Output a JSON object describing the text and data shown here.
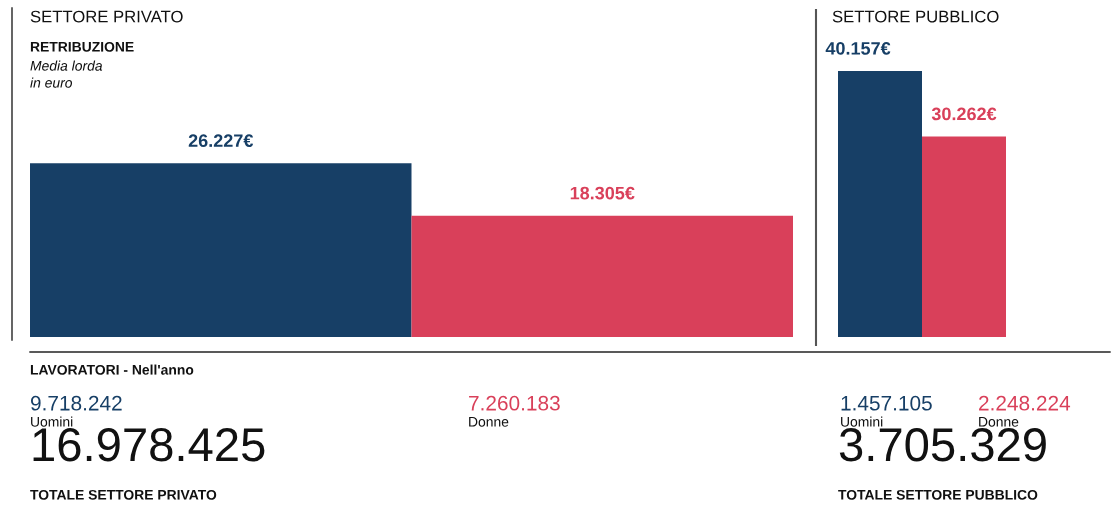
{
  "chart_data": [
    {
      "type": "bar",
      "title": "SETTORE PRIVATO",
      "categories": [
        null,
        null
      ],
      "values": [
        26227,
        18305
      ],
      "colors": [
        "#173f66",
        "#d9405a"
      ],
      "value_labels": [
        "26.227€",
        "18.305€"
      ],
      "tick_labels": false,
      "legend": false,
      "annotations": [
        "RETRIBUZIONE",
        "Media lorda",
        "in euro",
        "LAVORATORI - Nell'anno",
        "9.718.242",
        "Uomini",
        "7.260.183",
        "Donne",
        "16.978.425",
        "TOTALE SETTORE PRIVATO"
      ]
    },
    {
      "type": "bar",
      "title": "SETTORE PUBBLICO",
      "categories": [
        null,
        null
      ],
      "values": [
        40157,
        30262
      ],
      "colors": [
        "#173f66",
        "#d9405a"
      ],
      "value_labels": [
        "40.157€",
        "30.262€"
      ],
      "tick_labels": false,
      "legend": false,
      "annotations": [
        "1.457.105",
        "Uomini",
        "2.248.224",
        "Donne",
        "3.705.329",
        "TOTALE SETTORE PUBBLICO"
      ]
    }
  ]
}
